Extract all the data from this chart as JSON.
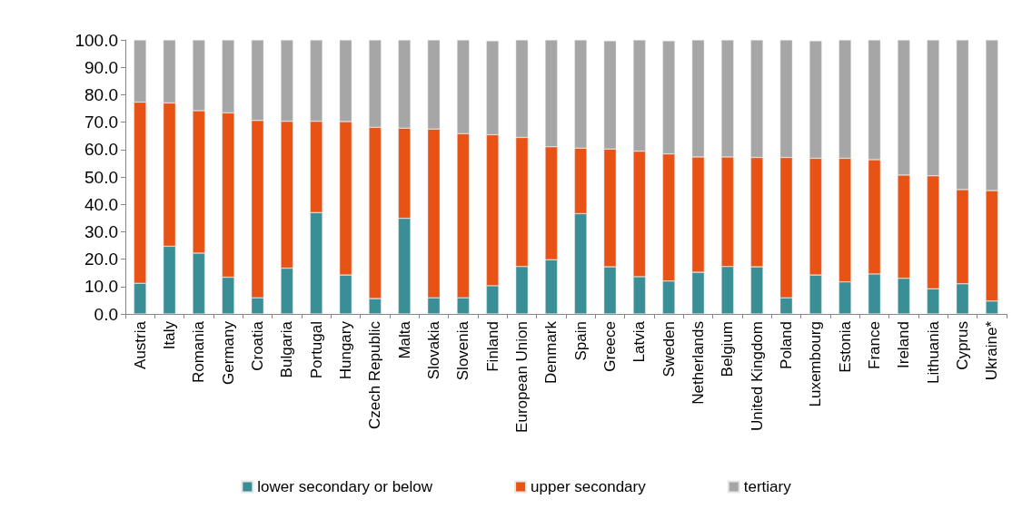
{
  "chart_data": {
    "type": "bar",
    "stacked": true,
    "legend": "bottom",
    "grid": false,
    "categories": [
      "Austria",
      "Italy",
      "Romania",
      "Germany",
      "Croatia",
      "Bulgaria",
      "Portugal",
      "Hungary",
      "Czech Republic",
      "Malta",
      "Slovakia",
      "Slovenia",
      "Finland",
      "European Union",
      "Denmark",
      "Spain",
      "Greece",
      "Latvia",
      "Sweden",
      "Netherlands",
      "Belgium",
      "United Kingdom",
      "Poland",
      "Luxembourg",
      "Estonia",
      "France",
      "Ireland",
      "Lithuania",
      "Cyprus",
      "Ukraine*"
    ],
    "series": [
      {
        "name": "lower secondary or below",
        "color": "#3a8e96",
        "values": [
          11.2,
          24.7,
          22.2,
          13.4,
          5.9,
          16.7,
          37.0,
          14.2,
          5.6,
          34.9,
          5.9,
          5.9,
          10.3,
          17.3,
          19.8,
          36.6,
          17.2,
          13.6,
          12.0,
          15.2,
          17.3,
          17.2,
          5.9,
          14.2,
          11.7,
          14.6,
          13.0,
          9.2,
          11.0,
          4.7
        ]
      },
      {
        "name": "upper secondary",
        "color": "#e85215",
        "values": [
          66.1,
          52.3,
          52.0,
          60.0,
          64.7,
          53.6,
          33.3,
          56.0,
          62.5,
          32.9,
          61.6,
          59.9,
          55.1,
          47.1,
          41.2,
          23.9,
          43.0,
          45.8,
          46.4,
          42.1,
          40.0,
          39.9,
          51.2,
          42.6,
          45.1,
          41.7,
          37.7,
          41.2,
          34.4,
          40.3
        ]
      },
      {
        "name": "tertiary",
        "color": "#a6a6a6",
        "values": [
          22.7,
          23.0,
          25.8,
          26.6,
          29.4,
          29.7,
          29.7,
          29.8,
          31.9,
          32.2,
          32.5,
          34.2,
          34.3,
          35.6,
          39.0,
          39.5,
          39.5,
          40.6,
          41.3,
          42.7,
          42.7,
          42.9,
          42.9,
          42.9,
          43.2,
          43.7,
          49.3,
          49.6,
          54.6,
          55.0
        ]
      }
    ],
    "ylim": [
      0,
      100
    ],
    "yticks": [
      {
        "value": 0,
        "label": "0.0"
      },
      {
        "value": 10,
        "label": "10.0"
      },
      {
        "value": 20,
        "label": "20.0"
      },
      {
        "value": 30,
        "label": "30.0"
      },
      {
        "value": 40,
        "label": "40.0"
      },
      {
        "value": 50,
        "label": "50.0"
      },
      {
        "value": 60,
        "label": "60.0"
      },
      {
        "value": 70,
        "label": "70.0"
      },
      {
        "value": 80,
        "label": "80.0"
      },
      {
        "value": 90,
        "label": "90.0"
      },
      {
        "value": 100,
        "label": "100.0"
      }
    ]
  }
}
